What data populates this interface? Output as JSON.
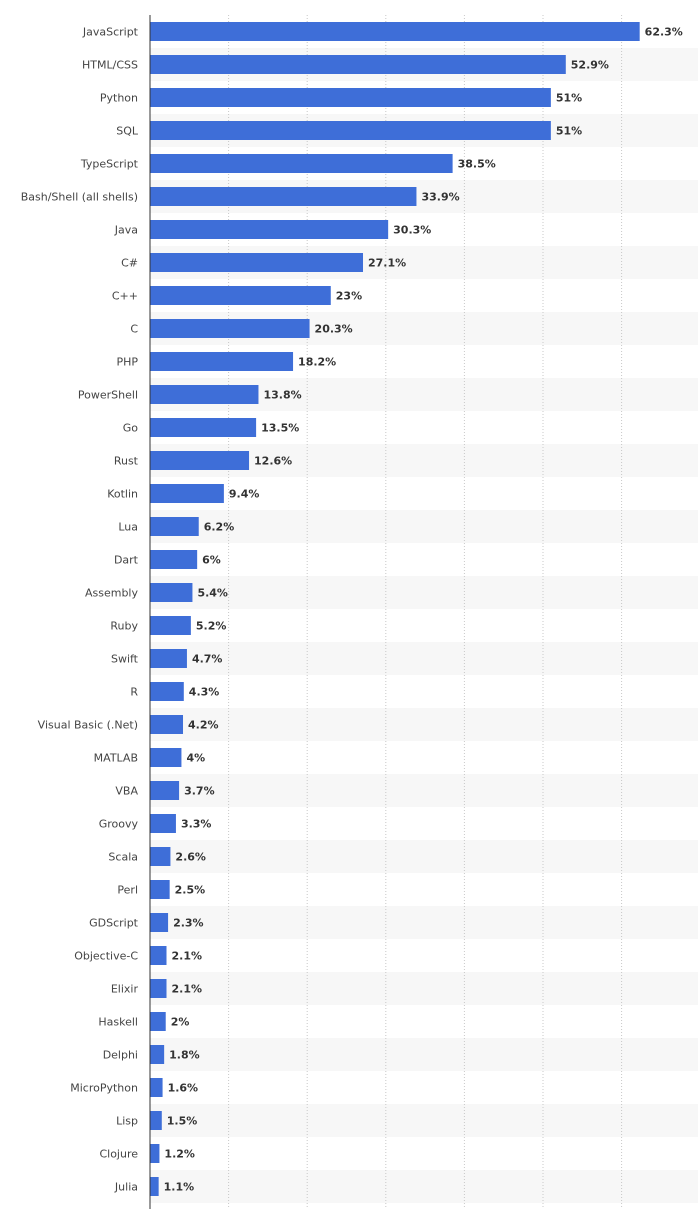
{
  "chart_data": {
    "type": "bar",
    "orientation": "horizontal",
    "title": "",
    "xlabel": "",
    "ylabel": "",
    "xlim": [
      0,
      70
    ],
    "grid": true,
    "value_suffix": "%",
    "bar_color": "#3e6ed8",
    "stripe_color": "#f7f7f7",
    "categories": [
      "JavaScript",
      "HTML/CSS",
      "Python",
      "SQL",
      "TypeScript",
      "Bash/Shell (all shells)",
      "Java",
      "C#",
      "C++",
      "C",
      "PHP",
      "PowerShell",
      "Go",
      "Rust",
      "Kotlin",
      "Lua",
      "Dart",
      "Assembly",
      "Ruby",
      "Swift",
      "R",
      "Visual Basic (.Net)",
      "MATLAB",
      "VBA",
      "Groovy",
      "Scala",
      "Perl",
      "GDScript",
      "Objective-C",
      "Elixir",
      "Haskell",
      "Delphi",
      "MicroPython",
      "Lisp",
      "Clojure",
      "Julia"
    ],
    "values": [
      62.3,
      52.9,
      51,
      51,
      38.5,
      33.9,
      30.3,
      27.1,
      23,
      20.3,
      18.2,
      13.8,
      13.5,
      12.6,
      9.4,
      6.2,
      6,
      5.4,
      5.2,
      4.7,
      4.3,
      4.2,
      4,
      3.7,
      3.3,
      2.6,
      2.5,
      2.3,
      2.1,
      2.1,
      2,
      1.8,
      1.6,
      1.5,
      1.2,
      1.1
    ],
    "value_labels": [
      "62.3%",
      "52.9%",
      "51%",
      "51%",
      "38.5%",
      "33.9%",
      "30.3%",
      "27.1%",
      "23%",
      "20.3%",
      "18.2%",
      "13.8%",
      "13.5%",
      "12.6%",
      "9.4%",
      "6.2%",
      "6%",
      "5.4%",
      "5.2%",
      "4.7%",
      "4.3%",
      "4.2%",
      "4%",
      "3.7%",
      "3.3%",
      "2.6%",
      "2.5%",
      "2.3%",
      "2.1%",
      "2.1%",
      "2%",
      "1.8%",
      "1.6%",
      "1.5%",
      "1.2%",
      "1.1%"
    ]
  }
}
